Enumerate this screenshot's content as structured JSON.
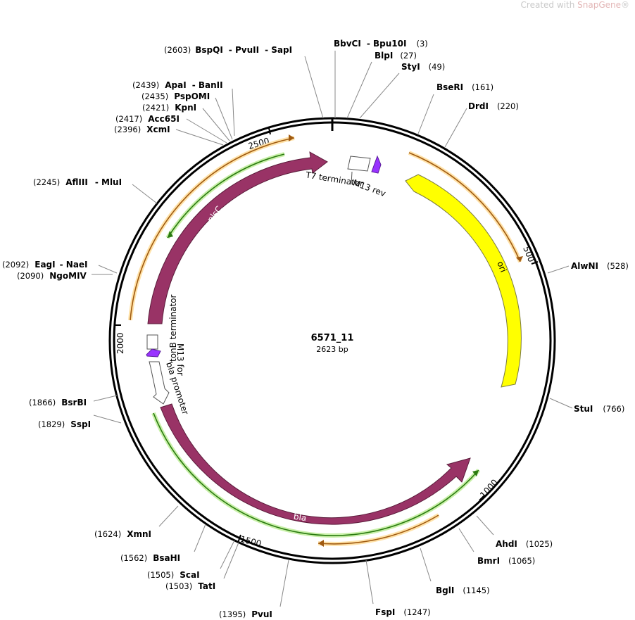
{
  "watermark": {
    "prefix": "Created with ",
    "brand": "SnapGene",
    "suffix": "®"
  },
  "plasmid": {
    "name": "6571_11",
    "length_label": "2623 bp",
    "length": 2623
  },
  "ticks": [
    "500",
    "1000",
    "1500",
    "2000",
    "2500"
  ],
  "sites": [
    {
      "id": "s1",
      "pos": "(2603)",
      "names": [
        "BspQI",
        "PvuII",
        "SapI"
      ]
    },
    {
      "id": "s2",
      "pos": "(3)",
      "names": [
        "BbvCI",
        "Bpu10I"
      ]
    },
    {
      "id": "s3",
      "pos": "(27)",
      "names": [
        "BlpI"
      ]
    },
    {
      "id": "s4",
      "pos": "(49)",
      "names": [
        "StyI"
      ]
    },
    {
      "id": "s5",
      "pos": "(161)",
      "names": [
        "BseRI"
      ]
    },
    {
      "id": "s6",
      "pos": "(220)",
      "names": [
        "DrdI"
      ]
    },
    {
      "id": "s7",
      "pos": "(528)",
      "names": [
        "AlwNI"
      ]
    },
    {
      "id": "s8",
      "pos": "(766)",
      "names": [
        "StuI"
      ]
    },
    {
      "id": "s9",
      "pos": "(1025)",
      "names": [
        "AhdI"
      ]
    },
    {
      "id": "s10",
      "pos": "(1065)",
      "names": [
        "BmrI"
      ]
    },
    {
      "id": "s11",
      "pos": "(1145)",
      "names": [
        "BglI"
      ]
    },
    {
      "id": "s12",
      "pos": "(1247)",
      "names": [
        "FspI"
      ]
    },
    {
      "id": "s13",
      "pos": "(1395)",
      "names": [
        "PvuI"
      ]
    },
    {
      "id": "s14",
      "pos": "(1503)",
      "names": [
        "TatI"
      ]
    },
    {
      "id": "s15",
      "pos": "(1505)",
      "names": [
        "ScaI"
      ]
    },
    {
      "id": "s16",
      "pos": "(1562)",
      "names": [
        "BsaHI"
      ]
    },
    {
      "id": "s17",
      "pos": "(1624)",
      "names": [
        "XmnI"
      ]
    },
    {
      "id": "s18",
      "pos": "(1829)",
      "names": [
        "SspI"
      ]
    },
    {
      "id": "s19",
      "pos": "(1866)",
      "names": [
        "BsrBI"
      ]
    },
    {
      "id": "s20",
      "pos": "(2090)",
      "names": [
        "NgoMIV"
      ]
    },
    {
      "id": "s21",
      "pos": "(2092)",
      "names": [
        "EagI",
        "NaeI"
      ]
    },
    {
      "id": "s22",
      "pos": "(2245)",
      "names": [
        "AflIII",
        "MluI"
      ]
    },
    {
      "id": "s23",
      "pos": "(2396)",
      "names": [
        "XcmI"
      ]
    },
    {
      "id": "s24",
      "pos": "(2417)",
      "names": [
        "Acc65I"
      ]
    },
    {
      "id": "s25",
      "pos": "(2421)",
      "names": [
        "KpnI"
      ]
    },
    {
      "id": "s26",
      "pos": "(2435)",
      "names": [
        "PspOMI"
      ]
    },
    {
      "id": "s27",
      "pos": "(2439)",
      "names": [
        "ApaI",
        "BanII"
      ]
    }
  ],
  "features": {
    "ori": "ori",
    "bla": "bla",
    "plsC": "plsC",
    "t7_term": "T7 terminator",
    "m13_rev": "M13 rev",
    "tonb_term": "tonB terminator",
    "m13_for": "M13 for",
    "bla_promoter": "bla promoter"
  },
  "colors": {
    "ori": "#ffff00",
    "cds": "#993366",
    "primer": "#9933ff",
    "orange_arc": "#ffbf4d",
    "green_arc": "#66cc33",
    "backbone": "#000000"
  }
}
